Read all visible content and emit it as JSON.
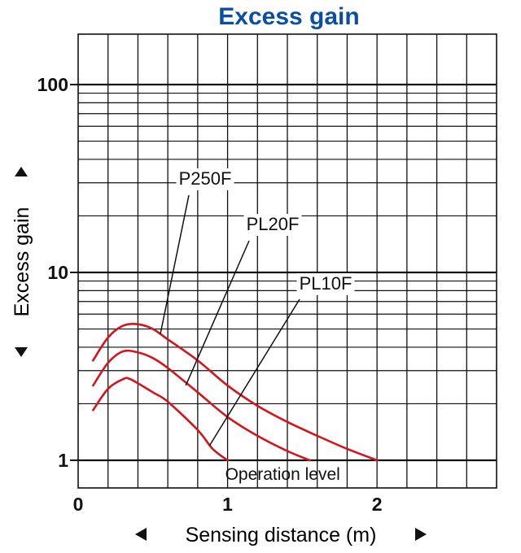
{
  "chart_data": {
    "type": "line",
    "title": "Excess gain",
    "xlabel": "Sensing distance (m)",
    "ylabel": "Excess gain",
    "x_scale": "linear",
    "y_scale": "log",
    "xlim": [
      0,
      2.8
    ],
    "ylim": [
      0.85,
      230
    ],
    "x_ticks": [
      "0",
      "1",
      "2"
    ],
    "y_ticks": [
      "1",
      "10",
      "100"
    ],
    "grid": true,
    "reference_line": {
      "label": "Operation level",
      "y": 1
    },
    "series": [
      {
        "name": "P250F",
        "points": [
          [
            0.1,
            3.4
          ],
          [
            0.2,
            4.5
          ],
          [
            0.3,
            5.2
          ],
          [
            0.4,
            5.3
          ],
          [
            0.5,
            5.0
          ],
          [
            0.6,
            4.4
          ],
          [
            0.8,
            3.4
          ],
          [
            1.0,
            2.5
          ],
          [
            1.2,
            1.95
          ],
          [
            1.4,
            1.6
          ],
          [
            1.6,
            1.35
          ],
          [
            1.8,
            1.15
          ],
          [
            2.0,
            1.0
          ]
        ]
      },
      {
        "name": "PL20F",
        "points": [
          [
            0.1,
            2.5
          ],
          [
            0.2,
            3.3
          ],
          [
            0.3,
            3.8
          ],
          [
            0.4,
            3.75
          ],
          [
            0.5,
            3.5
          ],
          [
            0.6,
            3.1
          ],
          [
            0.8,
            2.3
          ],
          [
            1.0,
            1.7
          ],
          [
            1.2,
            1.35
          ],
          [
            1.4,
            1.12
          ],
          [
            1.55,
            1.0
          ]
        ]
      },
      {
        "name": "PL10F",
        "points": [
          [
            0.1,
            1.85
          ],
          [
            0.2,
            2.4
          ],
          [
            0.3,
            2.7
          ],
          [
            0.35,
            2.7
          ],
          [
            0.5,
            2.3
          ],
          [
            0.6,
            2.05
          ],
          [
            0.8,
            1.45
          ],
          [
            0.9,
            1.15
          ],
          [
            1.0,
            1.0
          ]
        ]
      }
    ],
    "series_color": "#d8131b",
    "title_color": "#0b4ea2"
  }
}
